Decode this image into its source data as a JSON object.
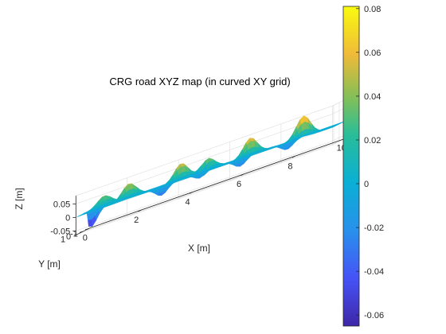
{
  "chart_data": {
    "type": "surface",
    "title": "CRG road XYZ map (in curved XY grid)",
    "xlabel": "X [m]",
    "ylabel": "Y [m]",
    "zlabel": "Z [m]",
    "xlim": [
      0,
      10
    ],
    "ylim": [
      -1.25,
      1.25
    ],
    "zlim": [
      -0.065,
      0.08
    ],
    "x_ticks": [
      "0",
      "2",
      "4",
      "6",
      "8",
      "10"
    ],
    "y_ticks": [
      "-1",
      "0",
      "1"
    ],
    "z_ticks": [
      "-0.05",
      "0",
      "0.05"
    ],
    "colormap": "parula",
    "grid": true,
    "colorbar": {
      "position": "right",
      "range": [
        -0.065,
        0.081
      ],
      "ticks": [
        "0.08",
        "0.06",
        "0.04",
        "0.02",
        "0",
        "-0.02",
        "-0.04",
        "-0.06"
      ]
    },
    "peaks": [
      {
        "x": 0.8,
        "y": -0.2,
        "z": 0.04
      },
      {
        "x": 1.9,
        "y": 0.4,
        "z": 0.055
      },
      {
        "x": 3.9,
        "y": 0.3,
        "z": 0.06
      },
      {
        "x": 4.8,
        "y": -0.3,
        "z": 0.045
      },
      {
        "x": 6.6,
        "y": 0.3,
        "z": 0.065
      },
      {
        "x": 8.7,
        "y": 0.5,
        "z": 0.08
      }
    ],
    "troughs": [
      {
        "x": 0.1,
        "y": -1.1,
        "z": -0.065
      },
      {
        "x": 3.0,
        "y": -0.3,
        "z": -0.035
      },
      {
        "x": 4.5,
        "y": -0.6,
        "z": -0.03
      },
      {
        "x": 6.0,
        "y": -0.6,
        "z": -0.03
      },
      {
        "x": 7.8,
        "y": -0.8,
        "z": -0.03
      }
    ]
  }
}
